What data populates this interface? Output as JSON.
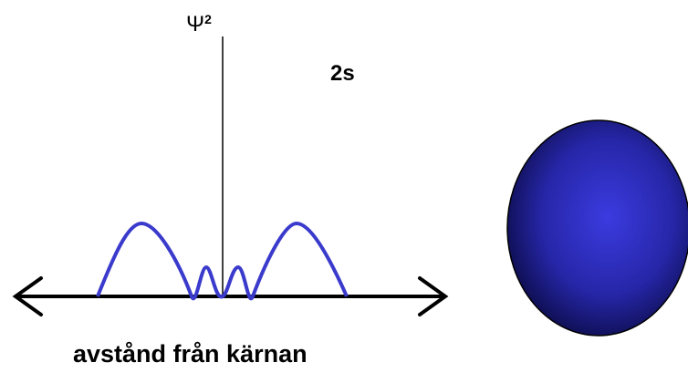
{
  "diagram": {
    "y_label": "Ψ",
    "y_label_exponent": "2",
    "orbital": "2s",
    "x_label": "avstånd från kärnan"
  }
}
